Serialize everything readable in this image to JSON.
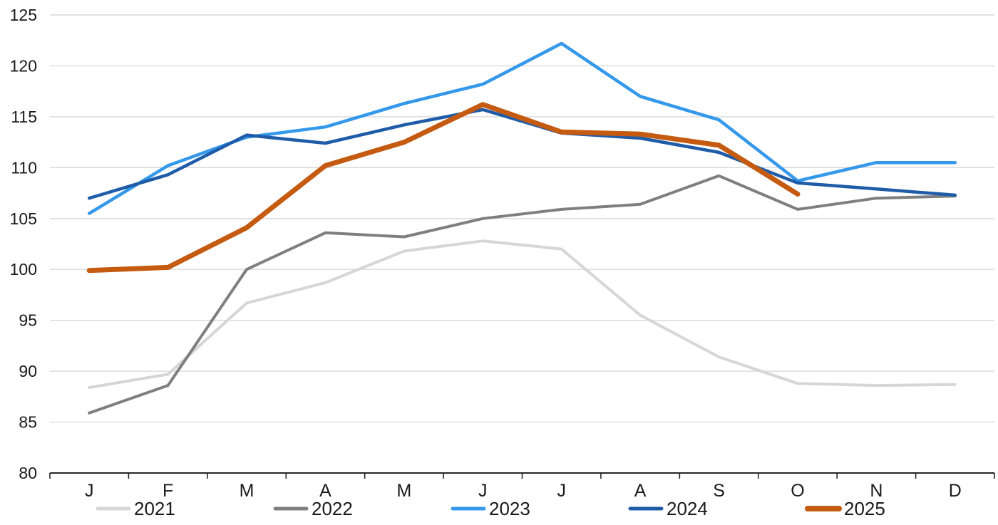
{
  "chart_data": {
    "type": "line",
    "title": "",
    "xlabel": "",
    "ylabel": "",
    "categories": [
      "J",
      "F",
      "M",
      "A",
      "M",
      "J",
      "J",
      "A",
      "S",
      "O",
      "N",
      "D"
    ],
    "ylim": [
      80,
      125
    ],
    "ytick_step": 5,
    "y_tick_labels": [
      "80",
      "85",
      "90",
      "95",
      "100",
      "105",
      "110",
      "115",
      "120",
      "125"
    ],
    "grid": true,
    "legend_position": "bottom",
    "series": [
      {
        "name": "2021",
        "color": "#D6D6D6",
        "width": 4,
        "values": [
          88.4,
          89.7,
          96.7,
          98.7,
          101.8,
          102.8,
          102.0,
          95.5,
          91.4,
          88.8,
          88.6,
          88.7
        ]
      },
      {
        "name": "2022",
        "color": "#7F7F7F",
        "width": 4,
        "values": [
          85.9,
          88.6,
          100.0,
          103.6,
          103.2,
          105.0,
          105.9,
          106.4,
          109.2,
          105.9,
          107.0,
          107.2
        ]
      },
      {
        "name": "2023",
        "color": "#3498EB",
        "width": 4.5,
        "values": [
          105.5,
          110.2,
          113.0,
          114.0,
          116.3,
          118.2,
          122.2,
          117.0,
          114.7,
          108.7,
          110.5,
          110.5
        ]
      },
      {
        "name": "2024",
        "color": "#1F5CA8",
        "width": 4.5,
        "values": [
          107.0,
          109.3,
          113.2,
          112.4,
          114.2,
          115.7,
          113.4,
          112.9,
          111.5,
          108.5,
          107.9,
          107.3
        ]
      },
      {
        "name": "2025",
        "color": "#C55A11",
        "width": 7,
        "values": [
          99.9,
          100.2,
          104.1,
          110.2,
          112.5,
          116.2,
          113.5,
          113.3,
          112.2,
          107.4,
          null,
          null
        ]
      }
    ]
  },
  "legend": {
    "items": [
      {
        "label": "2021",
        "color": "#D6D6D6"
      },
      {
        "label": "2022",
        "color": "#7F7F7F"
      },
      {
        "label": "2023",
        "color": "#3498EB"
      },
      {
        "label": "2024",
        "color": "#1F5CA8"
      },
      {
        "label": "2025",
        "color": "#C55A11"
      }
    ]
  },
  "colors": {
    "gridline": "#D9D9D9",
    "axis": "#262626",
    "text": "#1A1A1A",
    "background": "#FFFFFF"
  }
}
